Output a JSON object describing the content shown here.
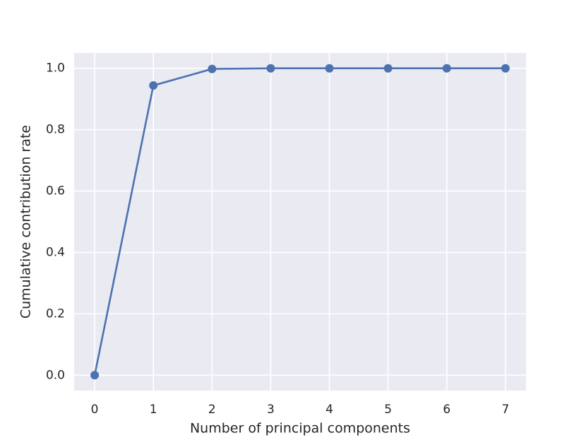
{
  "chart_data": {
    "type": "line",
    "x_label": "Number of principal components",
    "y_label": "Cumulative contribution rate",
    "x": [
      0,
      1,
      2,
      3,
      4,
      5,
      6,
      7
    ],
    "values": [
      0,
      0.944,
      0.998,
      1.0,
      1.0,
      1.0,
      1.0,
      1.0
    ],
    "color": "#4c72b0",
    "xlim": [
      -0.35,
      7.35
    ],
    "ylim": [
      -0.05,
      1.05
    ],
    "xticks": [
      0,
      1,
      2,
      3,
      4,
      5,
      6,
      7
    ],
    "yticks": [
      {
        "value": 0,
        "label": "0.0"
      },
      {
        "value": 0.2,
        "label": "0.2"
      },
      {
        "value": 0.4,
        "label": "0.4"
      },
      {
        "value": 0.6,
        "label": "0.6"
      },
      {
        "value": 0.8,
        "label": "0.8"
      },
      {
        "value": 1.0,
        "label": "1.0"
      }
    ],
    "grid": true
  }
}
